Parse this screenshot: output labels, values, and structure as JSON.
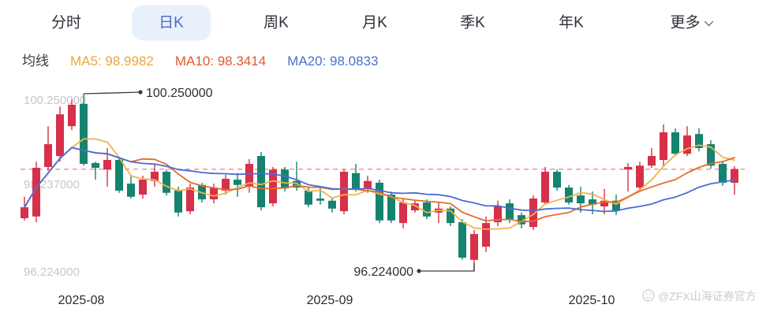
{
  "tabs": {
    "items": [
      {
        "label": "分时",
        "active": false
      },
      {
        "label": "日K",
        "active": true
      },
      {
        "label": "周K",
        "active": false
      },
      {
        "label": "月K",
        "active": false
      },
      {
        "label": "季K",
        "active": false
      },
      {
        "label": "年K",
        "active": false
      },
      {
        "label": "更多",
        "active": false,
        "has_dropdown": true
      }
    ],
    "active_bg": "#e8f0fc",
    "active_color": "#5066c9"
  },
  "legend": {
    "title": "均线",
    "items": [
      {
        "text": "MA5: 98.9982",
        "color": "#f0a43d"
      },
      {
        "text": "MA10: 98.3414",
        "color": "#e05b2d"
      },
      {
        "text": "MA20: 98.0833",
        "color": "#4a6fd0"
      }
    ]
  },
  "chart_data": {
    "type": "candlestick",
    "title": "",
    "y_axis_ticks": [
      "100.250000",
      "98.237000",
      "96.224000"
    ],
    "x_axis_labels": [
      "2025-08",
      "2025-09",
      "2025-10"
    ],
    "annotations": {
      "high": "100.250000",
      "low": "96.224000"
    },
    "price_range": [
      96.224,
      100.25
    ],
    "current_price_line": 98.53,
    "grid": false,
    "legend_position": "top-left",
    "colors": {
      "up": "#d6304a",
      "down": "#15836f",
      "ma5": "#eeb44e",
      "ma10": "#e26e2e",
      "ma20": "#4b6cd6",
      "price_line": "#f2949c"
    },
    "candle_format": [
      "open",
      "close",
      "low",
      "high"
    ],
    "candles": [
      [
        97.41,
        97.66,
        97.36,
        97.9
      ],
      [
        97.45,
        98.56,
        97.32,
        98.7
      ],
      [
        98.58,
        99.1,
        98.49,
        99.51
      ],
      [
        98.83,
        99.78,
        98.7,
        99.96
      ],
      [
        99.51,
        100.0,
        99.42,
        100.11
      ],
      [
        100.02,
        98.65,
        98.61,
        100.25
      ],
      [
        98.67,
        98.56,
        98.29,
        98.7
      ],
      [
        98.52,
        98.74,
        98.13,
        99.01
      ],
      [
        98.74,
        98.04,
        97.99,
        98.79
      ],
      [
        98.2,
        97.9,
        97.86,
        98.4
      ],
      [
        97.95,
        98.29,
        97.86,
        98.38
      ],
      [
        98.26,
        98.47,
        98.13,
        98.65
      ],
      [
        98.47,
        97.99,
        97.93,
        98.52
      ],
      [
        98.04,
        97.54,
        97.45,
        98.13
      ],
      [
        97.57,
        98.11,
        97.5,
        98.2
      ],
      [
        98.17,
        97.84,
        97.77,
        98.22
      ],
      [
        97.84,
        98.11,
        97.75,
        98.2
      ],
      [
        98.04,
        98.31,
        97.95,
        98.4
      ],
      [
        98.29,
        98.17,
        97.9,
        98.44
      ],
      [
        98.13,
        98.65,
        97.99,
        98.76
      ],
      [
        98.83,
        97.66,
        97.59,
        98.92
      ],
      [
        97.75,
        98.52,
        97.68,
        98.58
      ],
      [
        98.52,
        98.09,
        98.02,
        98.58
      ],
      [
        98.26,
        98.11,
        98.04,
        98.7
      ],
      [
        98.04,
        97.72,
        97.66,
        98.11
      ],
      [
        97.86,
        97.81,
        97.72,
        98.13
      ],
      [
        97.81,
        97.63,
        97.54,
        97.86
      ],
      [
        97.57,
        98.47,
        97.5,
        98.52
      ],
      [
        98.44,
        98.08,
        98.02,
        98.65
      ],
      [
        98.08,
        98.26,
        97.99,
        98.38
      ],
      [
        98.22,
        97.36,
        97.3,
        98.29
      ],
      [
        97.95,
        97.36,
        97.3,
        98.02
      ],
      [
        97.3,
        97.77,
        97.18,
        97.86
      ],
      [
        97.59,
        97.75,
        97.54,
        97.81
      ],
      [
        97.77,
        97.45,
        97.39,
        97.84
      ],
      [
        97.54,
        97.63,
        97.3,
        97.77
      ],
      [
        97.63,
        97.3,
        97.23,
        97.68
      ],
      [
        97.32,
        96.51,
        96.46,
        97.39
      ],
      [
        96.46,
        97.05,
        96.224,
        97.14
      ],
      [
        96.76,
        97.3,
        96.64,
        97.45
      ],
      [
        97.32,
        97.68,
        97.23,
        97.81
      ],
      [
        97.75,
        97.39,
        97.3,
        97.84
      ],
      [
        97.48,
        97.27,
        97.18,
        97.54
      ],
      [
        97.21,
        97.86,
        97.14,
        97.93
      ],
      [
        97.77,
        98.47,
        97.72,
        98.58
      ],
      [
        98.47,
        98.11,
        98.04,
        98.52
      ],
      [
        98.11,
        97.77,
        97.72,
        98.17
      ],
      [
        97.93,
        97.75,
        97.54,
        98.13
      ],
      [
        97.84,
        97.72,
        97.5,
        98.02
      ],
      [
        97.68,
        97.81,
        97.5,
        98.08
      ],
      [
        97.81,
        97.59,
        97.48,
        97.95
      ],
      [
        98.52,
        98.58,
        98.02,
        98.67
      ],
      [
        98.11,
        98.61,
        98.04,
        98.7
      ],
      [
        98.61,
        98.83,
        98.56,
        99.01
      ],
      [
        98.74,
        99.37,
        98.58,
        99.55
      ],
      [
        99.37,
        98.88,
        98.83,
        99.46
      ],
      [
        98.88,
        99.3,
        98.83,
        99.51
      ],
      [
        99.33,
        99.01,
        98.94,
        99.46
      ],
      [
        99.1,
        98.61,
        98.54,
        99.19
      ],
      [
        98.65,
        98.22,
        98.15,
        98.72
      ],
      [
        98.22,
        98.53,
        97.95,
        98.6
      ]
    ],
    "ma_periods": [
      5,
      10,
      20
    ]
  },
  "watermark": {
    "text": "@ZFX山海证券官方"
  }
}
